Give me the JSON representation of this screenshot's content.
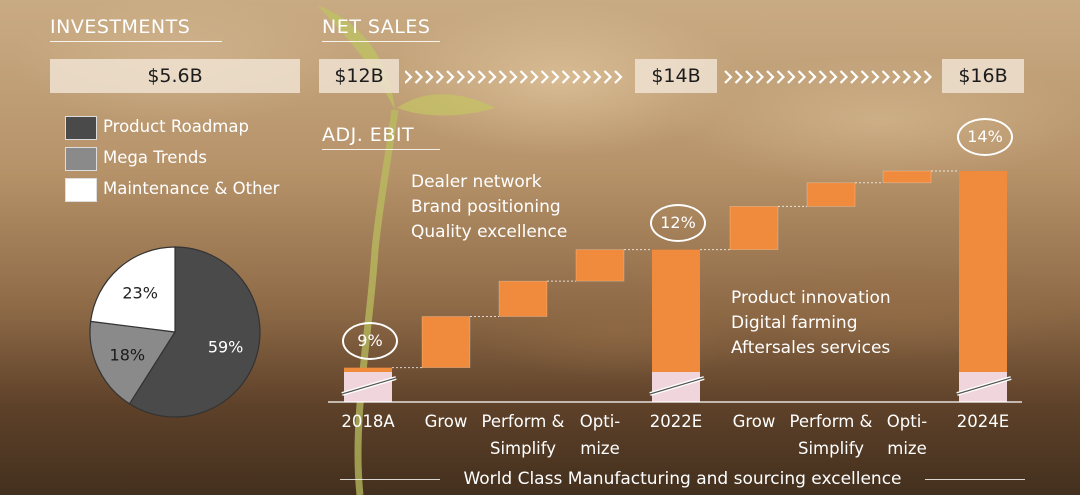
{
  "investments": {
    "title": "INVESTMENTS",
    "total": "$5.6B",
    "legend": [
      {
        "label": "Product Roadmap",
        "color": "#4a4a4a"
      },
      {
        "label": "Mega Trends",
        "color": "#8a8a8a"
      },
      {
        "label": "Maintenance & Other",
        "color": "#ffffff"
      }
    ]
  },
  "net_sales": {
    "title": "NET SALES",
    "values": [
      "$12B",
      "$14B",
      "$16B"
    ]
  },
  "adj_ebit": {
    "title": "ADJ. EBIT",
    "margins": [
      "9%",
      "12%",
      "14%"
    ],
    "note_top": [
      "Dealer network",
      "Brand positioning",
      "Quality excellence"
    ],
    "note_bottom": [
      "Product innovation",
      "Digital farming",
      "Aftersales services"
    ],
    "footer": "World Class Manufacturing and sourcing excellence"
  },
  "chart_data": [
    {
      "type": "pie",
      "title": "",
      "labels": [
        "Product Roadmap",
        "Mega Trends",
        "Maintenance & Other"
      ],
      "values": [
        59,
        18,
        23
      ],
      "value_labels": [
        "59%",
        "18%",
        "23%"
      ],
      "colors": [
        "#4a4a4a",
        "#8a8a8a",
        "#ffffff"
      ]
    },
    {
      "type": "bar",
      "subtype": "waterfall",
      "title": "ADJ. EBIT",
      "categories": [
        "2018A",
        "Grow",
        "Perform & Simplify",
        "Opti-mize",
        "2022E",
        "Grow",
        "Perform & Simplify",
        "Opti-mize",
        "2024E"
      ],
      "category_lines": [
        [
          "2018A"
        ],
        [
          "Grow"
        ],
        [
          "Perform &",
          "Simplify"
        ],
        [
          "Opti-",
          "mize"
        ],
        [
          "2022E"
        ],
        [
          "Grow"
        ],
        [
          "Perform &",
          "Simplify"
        ],
        [
          "Opti-",
          "mize"
        ],
        [
          "2024E"
        ]
      ],
      "bar_kind": [
        "total",
        "step",
        "step",
        "step",
        "total",
        "step",
        "step",
        "step",
        "total"
      ],
      "start": [
        0,
        9,
        10.3,
        11.2,
        0,
        12,
        13.1,
        13.7,
        0
      ],
      "end": [
        9,
        10.3,
        11.2,
        12,
        12,
        13.1,
        13.7,
        14,
        14
      ],
      "margin_labels": {
        "2018A": "9%",
        "2022E": "12%",
        "2024E": "14%"
      },
      "colors": {
        "bar": "#f08a3c",
        "base": "#f0d6dc"
      },
      "axis_break": true,
      "ylabel": ""
    }
  ]
}
